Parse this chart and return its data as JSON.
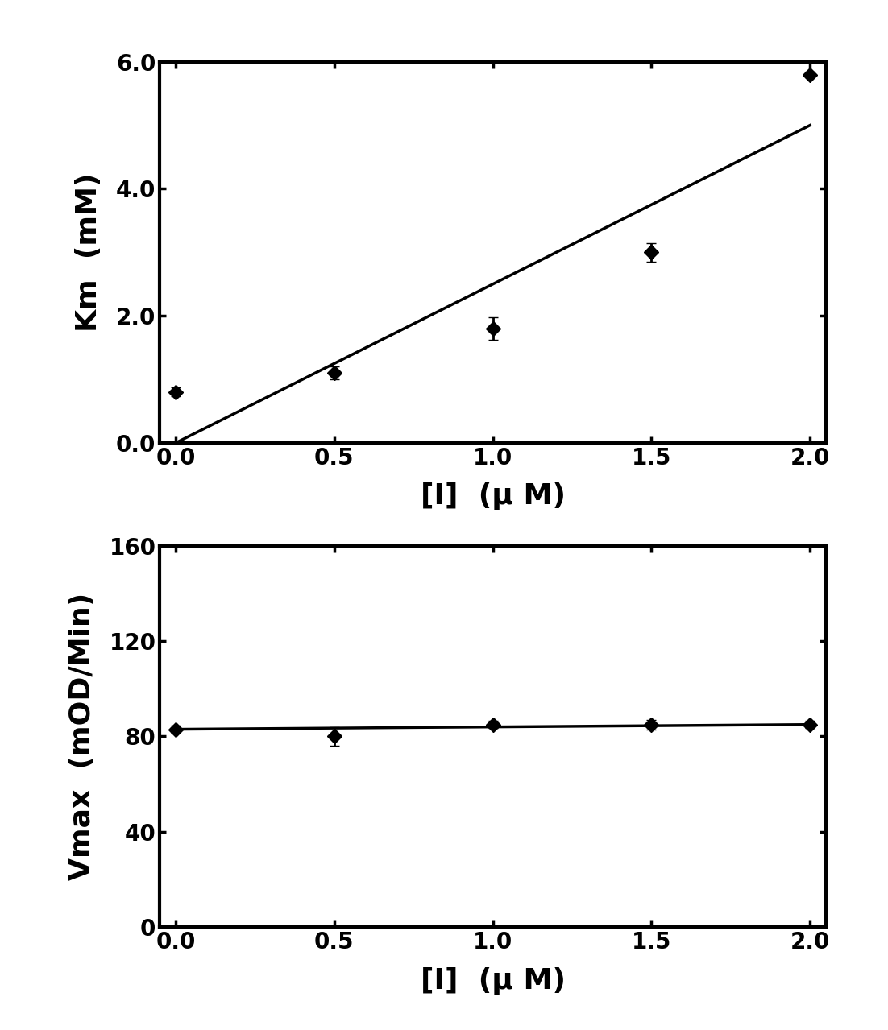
{
  "top": {
    "x": [
      0.0,
      0.5,
      1.0,
      1.5,
      2.0
    ],
    "y": [
      0.8,
      1.1,
      1.8,
      3.0,
      5.8
    ],
    "yerr": [
      0.07,
      0.1,
      0.18,
      0.15,
      0.05
    ],
    "line_x": [
      0.0,
      2.0
    ],
    "line_y": [
      0.0,
      5.0
    ],
    "xlabel": "[I]  (μ M)",
    "ylabel": "Km  (mM)",
    "xlim": [
      -0.05,
      2.05
    ],
    "ylim": [
      0.0,
      6.0
    ],
    "xticks": [
      0.0,
      0.5,
      1.0,
      1.5,
      2.0
    ],
    "yticks": [
      0.0,
      2.0,
      4.0,
      6.0
    ]
  },
  "bottom": {
    "x": [
      0.0,
      0.5,
      1.0,
      1.5,
      2.0
    ],
    "y": [
      83,
      80,
      85,
      85,
      85
    ],
    "yerr": [
      1.5,
      4.0,
      1.5,
      2.0,
      1.5
    ],
    "line_x": [
      0.0,
      2.0
    ],
    "line_y": [
      83,
      85
    ],
    "xlabel": "[I]  (μ M)",
    "ylabel": "Vmax  (mOD/Min)",
    "xlim": [
      -0.05,
      2.05
    ],
    "ylim": [
      0,
      160
    ],
    "xticks": [
      0.0,
      0.5,
      1.0,
      1.5,
      2.0
    ],
    "yticks": [
      0,
      40,
      80,
      120,
      160
    ]
  },
  "bg_color": "#ffffff",
  "line_color": "#000000",
  "marker_color": "#000000",
  "marker_style": "D",
  "marker_size": 9,
  "linewidth": 2.5,
  "tick_font_size": 20,
  "label_font_size": 26,
  "spine_linewidth": 3.0
}
